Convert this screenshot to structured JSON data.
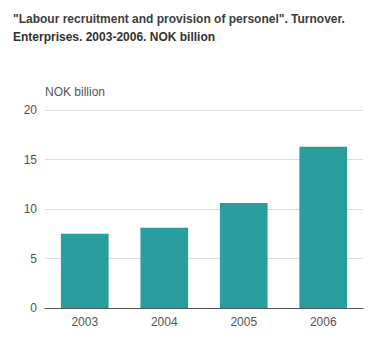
{
  "chart_data": {
    "type": "bar",
    "title": "\"Labour recruitment and provision of personel\". Turnover.",
    "subtitle": "Enterprises. 2003-2006. NOK billion",
    "ylabel": "NOK billion",
    "categories": [
      "2003",
      "2004",
      "2005",
      "2006"
    ],
    "values": [
      7.5,
      8.1,
      10.6,
      16.3
    ],
    "color": "#2a9d9d",
    "ylim": [
      0,
      20
    ],
    "yticks": [
      0,
      5,
      10,
      15,
      20
    ],
    "grid": true
  }
}
